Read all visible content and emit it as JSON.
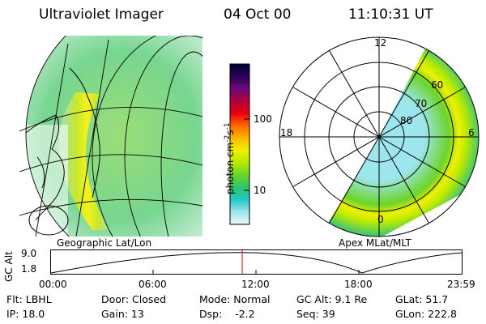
{
  "header": {
    "title": "Ultraviolet Imager",
    "date": "04 Oct 00",
    "time": "11:10:31 UT"
  },
  "left_panel": {
    "caption": "Geographic Lat/Lon"
  },
  "right_panel": {
    "caption": "Apex MLat/MLT",
    "mlt_labels": [
      "12",
      "18",
      "6",
      "0"
    ],
    "mlat_labels": [
      "60",
      "70",
      "80"
    ]
  },
  "colorbar": {
    "ticks": [
      "100",
      "10"
    ],
    "unit_label": "photon cm",
    "unit_exp1": "-2",
    "unit_mid": "s",
    "unit_exp2": "-1",
    "colors": [
      "#000033",
      "#2a0055",
      "#6a0a7a",
      "#b0003a",
      "#e80010",
      "#ff6a00",
      "#ffb400",
      "#f0f000",
      "#b8ea00",
      "#6cd42a",
      "#2ec46a",
      "#22c8c8",
      "#9ee6ee",
      "#eef8fa"
    ]
  },
  "altitude_plot": {
    "axis_label": "GC Alt",
    "y_ticks": [
      "9.0",
      "1.8"
    ],
    "x_ticks": [
      "00:00",
      "06:00",
      "12:00",
      "18:00",
      "23:59"
    ],
    "marker_time_hours": 11.175
  },
  "footer": {
    "rows": [
      [
        "Flt: LBHL",
        "Door: Closed",
        "Mode: Normal",
        "GC Alt: 9.1 Re",
        "GLat:  51.7"
      ],
      [
        "IP: 18.0",
        "Gain: 13",
        "Dsp:    -2.2",
        "Seq: 39",
        "GLon: 222.8"
      ]
    ]
  }
}
